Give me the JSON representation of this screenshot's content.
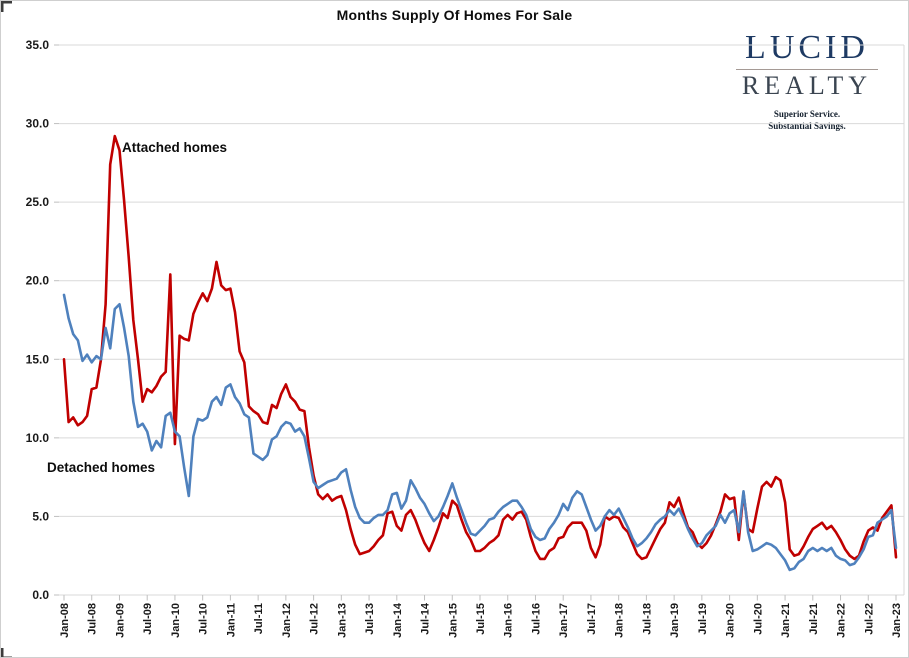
{
  "title": "Months Supply Of Homes For Sale",
  "logo": {
    "name": "LUCID",
    "name2": "REALTY",
    "tagline_line1": "Superior Service.",
    "tagline_line2": "Substantial Savings."
  },
  "colors": {
    "attached_line": "#C00000",
    "detached_line": "#4F81BD",
    "gridline": "#d9d9d9",
    "tick": "#bfbfbf",
    "axis_text": "#1a1a1a"
  },
  "chart_data": {
    "type": "line",
    "title": "Months Supply Of Homes For Sale",
    "xlabel": "",
    "ylabel": "",
    "ylim": [
      0,
      35
    ],
    "grid": "horizontal",
    "legend_position": "inline-annotations",
    "y_ticks": [
      0,
      5,
      10,
      15,
      20,
      25,
      30,
      35
    ],
    "y_tick_labels": [
      "0.0",
      "5.0",
      "10.0",
      "15.0",
      "20.0",
      "25.0",
      "30.0",
      "35.0"
    ],
    "x_start": "Jan-08",
    "x_end": "Jan-23",
    "x_interval": "monthly",
    "x_tick_labels": [
      "Jan-08",
      "Jul-08",
      "Jan-09",
      "Jul-09",
      "Jan-10",
      "Jul-10",
      "Jan-11",
      "Jul-11",
      "Jan-12",
      "Jul-12",
      "Jan-13",
      "Jul-13",
      "Jan-14",
      "Jul-14",
      "Jan-15",
      "Jul-15",
      "Jan-16",
      "Jul-16",
      "Jan-17",
      "Jul-17",
      "Jan-18",
      "Jul-18",
      "Jan-19",
      "Jul-19",
      "Jan-20",
      "Jul-20",
      "Jan-21",
      "Jul-21",
      "Jan-22",
      "Jul-22",
      "Jan-23"
    ],
    "annotations": [
      {
        "text": "Attached homes",
        "series": "attached"
      },
      {
        "text": "Detached homes",
        "series": "detached"
      }
    ],
    "series": [
      {
        "name": "Attached homes",
        "color": "#C00000",
        "values": [
          15.0,
          11.0,
          11.3,
          10.8,
          11.0,
          11.4,
          13.1,
          13.2,
          15.0,
          18.5,
          27.4,
          29.2,
          28.3,
          25.1,
          21.5,
          17.5,
          15.0,
          12.3,
          13.1,
          12.9,
          13.3,
          13.9,
          14.2,
          20.4,
          9.6,
          16.5,
          16.3,
          16.2,
          17.9,
          18.6,
          19.2,
          18.7,
          19.5,
          21.2,
          19.7,
          19.4,
          19.5,
          18.0,
          15.5,
          14.8,
          12.0,
          11.7,
          11.5,
          11.0,
          10.9,
          12.1,
          11.9,
          12.8,
          13.4,
          12.6,
          12.3,
          11.8,
          11.7,
          9.4,
          7.6,
          6.4,
          6.1,
          6.4,
          6.0,
          6.2,
          6.3,
          5.4,
          4.2,
          3.2,
          2.6,
          2.7,
          2.8,
          3.1,
          3.5,
          3.8,
          5.2,
          5.3,
          4.4,
          4.1,
          5.1,
          5.4,
          4.8,
          4.0,
          3.3,
          2.8,
          3.5,
          4.3,
          5.2,
          4.9,
          6.0,
          5.7,
          4.8,
          4.0,
          3.5,
          2.8,
          2.8,
          3.0,
          3.3,
          3.5,
          3.8,
          4.8,
          5.1,
          4.8,
          5.2,
          5.3,
          4.8,
          3.7,
          2.8,
          2.3,
          2.3,
          2.8,
          3.0,
          3.6,
          3.7,
          4.3,
          4.6,
          4.6,
          4.6,
          4.1,
          3.0,
          2.4,
          3.2,
          5.0,
          4.8,
          5.0,
          4.9,
          4.3,
          4.0,
          3.3,
          2.6,
          2.3,
          2.4,
          3.0,
          3.6,
          4.2,
          4.6,
          5.9,
          5.6,
          6.2,
          5.2,
          4.3,
          4.0,
          3.3,
          3.0,
          3.3,
          3.8,
          4.5,
          5.3,
          6.4,
          6.1,
          6.2,
          3.5,
          6.5,
          4.2,
          4.0,
          5.5,
          6.9,
          7.2,
          6.9,
          7.5,
          7.3,
          5.9,
          2.9,
          2.5,
          2.6,
          3.1,
          3.7,
          4.2,
          4.4,
          4.6,
          4.2,
          4.4,
          4.0,
          3.5,
          2.9,
          2.5,
          2.3,
          2.5,
          3.4,
          4.1,
          4.3,
          4.1,
          4.9,
          5.3,
          5.7,
          2.4
        ]
      },
      {
        "name": "Detached homes",
        "color": "#4F81BD",
        "values": [
          19.1,
          17.6,
          16.6,
          16.2,
          14.9,
          15.3,
          14.8,
          15.2,
          15.0,
          17.0,
          15.7,
          18.2,
          18.5,
          17.0,
          15.2,
          12.3,
          10.7,
          10.9,
          10.4,
          9.2,
          9.8,
          9.4,
          11.4,
          11.6,
          10.4,
          10.1,
          8.1,
          6.3,
          10.1,
          11.2,
          11.1,
          11.3,
          12.3,
          12.6,
          12.1,
          13.2,
          13.4,
          12.6,
          12.2,
          11.5,
          11.3,
          9.0,
          8.8,
          8.6,
          8.9,
          9.9,
          10.1,
          10.7,
          11.0,
          10.9,
          10.4,
          10.6,
          10.1,
          8.7,
          7.2,
          6.8,
          7.0,
          7.2,
          7.3,
          7.4,
          7.8,
          8.0,
          6.7,
          5.6,
          4.9,
          4.6,
          4.6,
          4.9,
          5.1,
          5.1,
          5.4,
          6.4,
          6.5,
          5.5,
          6.0,
          7.3,
          6.8,
          6.2,
          5.8,
          5.2,
          4.7,
          5.0,
          5.6,
          6.3,
          7.1,
          6.2,
          5.4,
          4.6,
          3.9,
          3.8,
          4.1,
          4.4,
          4.8,
          4.9,
          5.3,
          5.6,
          5.8,
          6.0,
          6.0,
          5.6,
          5.1,
          4.2,
          3.7,
          3.5,
          3.6,
          4.2,
          4.6,
          5.1,
          5.8,
          5.4,
          6.2,
          6.6,
          6.4,
          5.6,
          4.8,
          4.1,
          4.4,
          5.0,
          5.4,
          5.1,
          5.5,
          4.9,
          4.3,
          3.6,
          3.1,
          3.3,
          3.6,
          4.0,
          4.5,
          4.8,
          5.0,
          5.4,
          5.1,
          5.5,
          4.9,
          4.2,
          3.6,
          3.1,
          3.3,
          3.8,
          4.1,
          4.4,
          5.1,
          4.6,
          5.2,
          5.4,
          4.0,
          6.6,
          4.0,
          2.8,
          2.9,
          3.1,
          3.3,
          3.2,
          3.0,
          2.6,
          2.2,
          1.6,
          1.7,
          2.1,
          2.3,
          2.8,
          3.0,
          2.8,
          3.0,
          2.8,
          3.0,
          2.5,
          2.3,
          2.2,
          1.9,
          2.0,
          2.4,
          2.9,
          3.7,
          3.8,
          4.6,
          4.8,
          5.0,
          5.4,
          3.0
        ]
      }
    ]
  }
}
